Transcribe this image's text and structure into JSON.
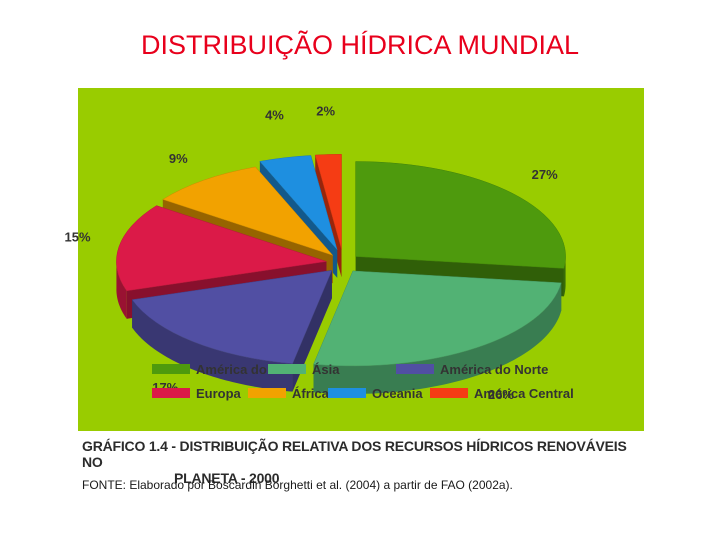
{
  "slide": {
    "title": "DISTRIBUIÇÃO HÍDRICA MUNDIAL"
  },
  "chart_data": {
    "type": "pie",
    "title": "",
    "series": [
      {
        "name": "América do Sul",
        "value": 27,
        "label": "27%",
        "color": "#4e9a0d"
      },
      {
        "name": "Ásia",
        "value": 26,
        "label": "26%",
        "color": "#52b274"
      },
      {
        "name": "América do Norte",
        "value": 17,
        "label": "17%",
        "color": "#514fa3"
      },
      {
        "name": "Europa",
        "value": 15,
        "label": "15%",
        "color": "#db1a48"
      },
      {
        "name": "África",
        "value": 9,
        "label": "9%",
        "color": "#f2a200"
      },
      {
        "name": "Oceania",
        "value": 4,
        "label": "4%",
        "color": "#1e8fe0"
      },
      {
        "name": "América Central",
        "value": 2,
        "label": "2%",
        "color": "#f53c14"
      }
    ],
    "background_color": "#99cc00",
    "legend_placement": "bottom",
    "style": "3D exploded pie"
  },
  "caption": {
    "line1": "GRÁFICO 1.4 - DISTRIBUIÇÃO RELATIVA DOS RECURSOS HÍDRICOS RENOVÁVEIS NO",
    "line2": "PLANETA - 2000",
    "source": "FONTE: Elaborado por Boscardin Borghetti et al. (2004) a partir de FAO (2002a)."
  }
}
